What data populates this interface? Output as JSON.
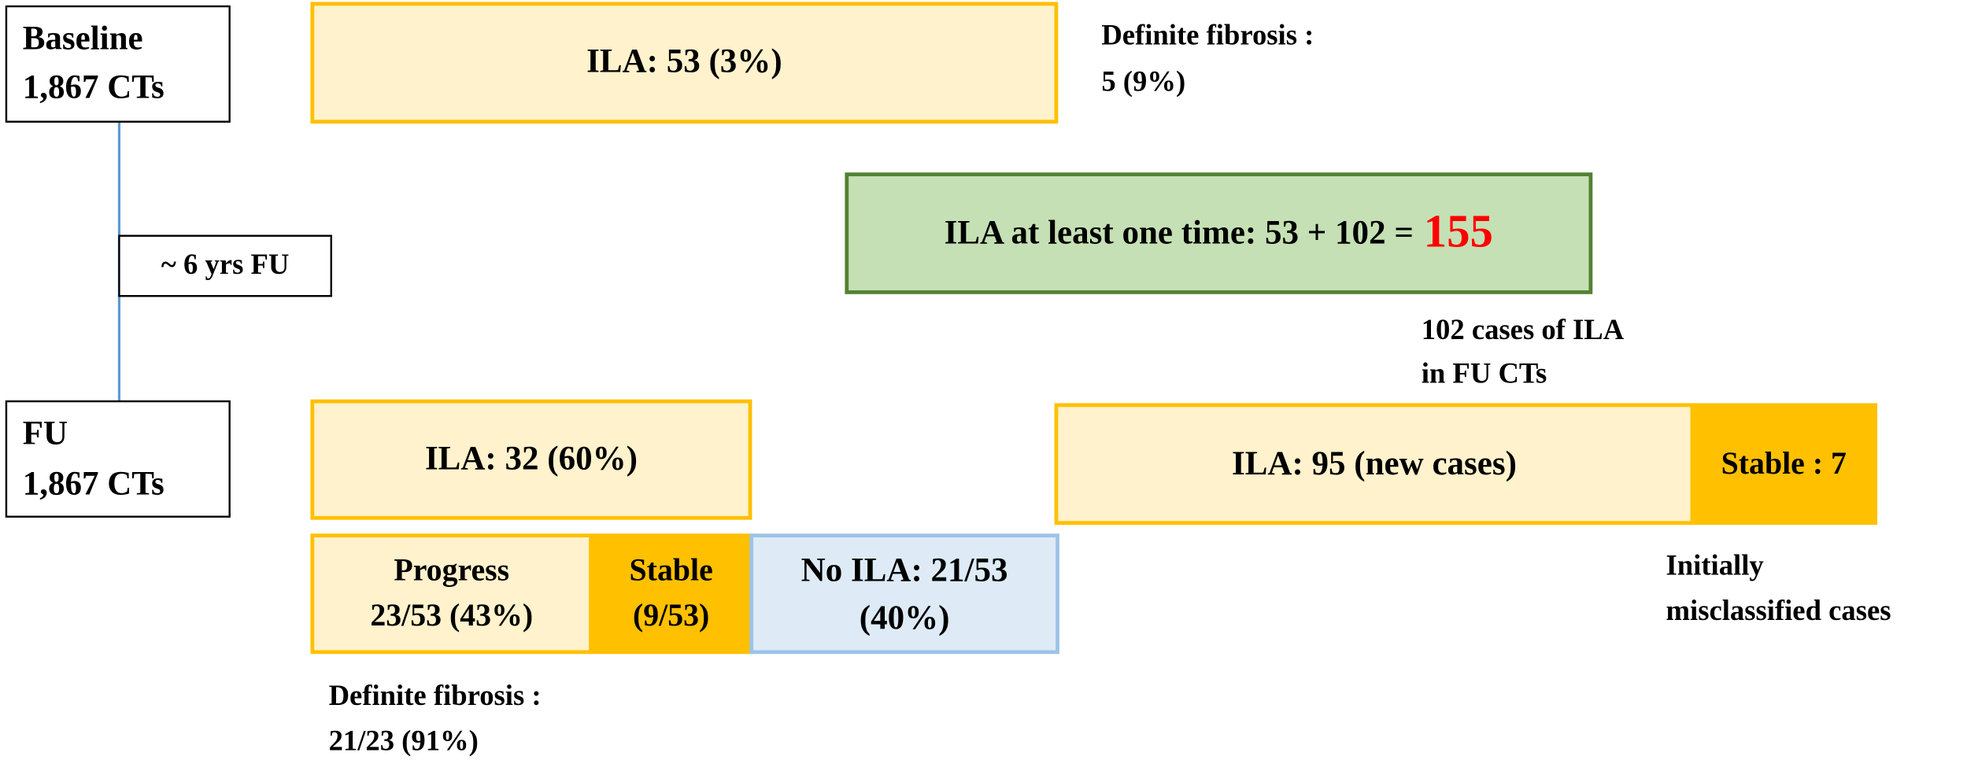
{
  "baseline": {
    "line1": "Baseline",
    "line2": "1,867 CTs"
  },
  "interval": {
    "label": "~ 6 yrs FU"
  },
  "followup": {
    "line1": "FU",
    "line2": "1,867 CTs"
  },
  "baseline_ila": {
    "label": "ILA: 53 (3%)"
  },
  "baseline_fibrosis": {
    "line1": "Definite fibrosis :",
    "line2": "5 (9%)"
  },
  "total": {
    "label": "ILA at least one time: 53 + 102 =",
    "value": "155"
  },
  "fu_cases": {
    "line1": "102 cases of ILA",
    "line2": "in FU CTs"
  },
  "fu_ila": {
    "label": "ILA: 32 (60%)"
  },
  "progress": {
    "line1": "Progress",
    "line2": "23/53 (43%)"
  },
  "stable": {
    "line1": "Stable",
    "line2": "(9/53)"
  },
  "no_ila": {
    "line1": "No ILA: 21/53",
    "line2": "(40%)"
  },
  "fu_fibrosis": {
    "line1": "Definite fibrosis :",
    "line2": "21/23 (91%)"
  },
  "new_cases": {
    "label": "ILA: 95 (new cases)"
  },
  "stable_new": {
    "label": "Stable : 7"
  },
  "misclassified": {
    "line1": "Initially",
    "line2": "misclassified cases"
  }
}
